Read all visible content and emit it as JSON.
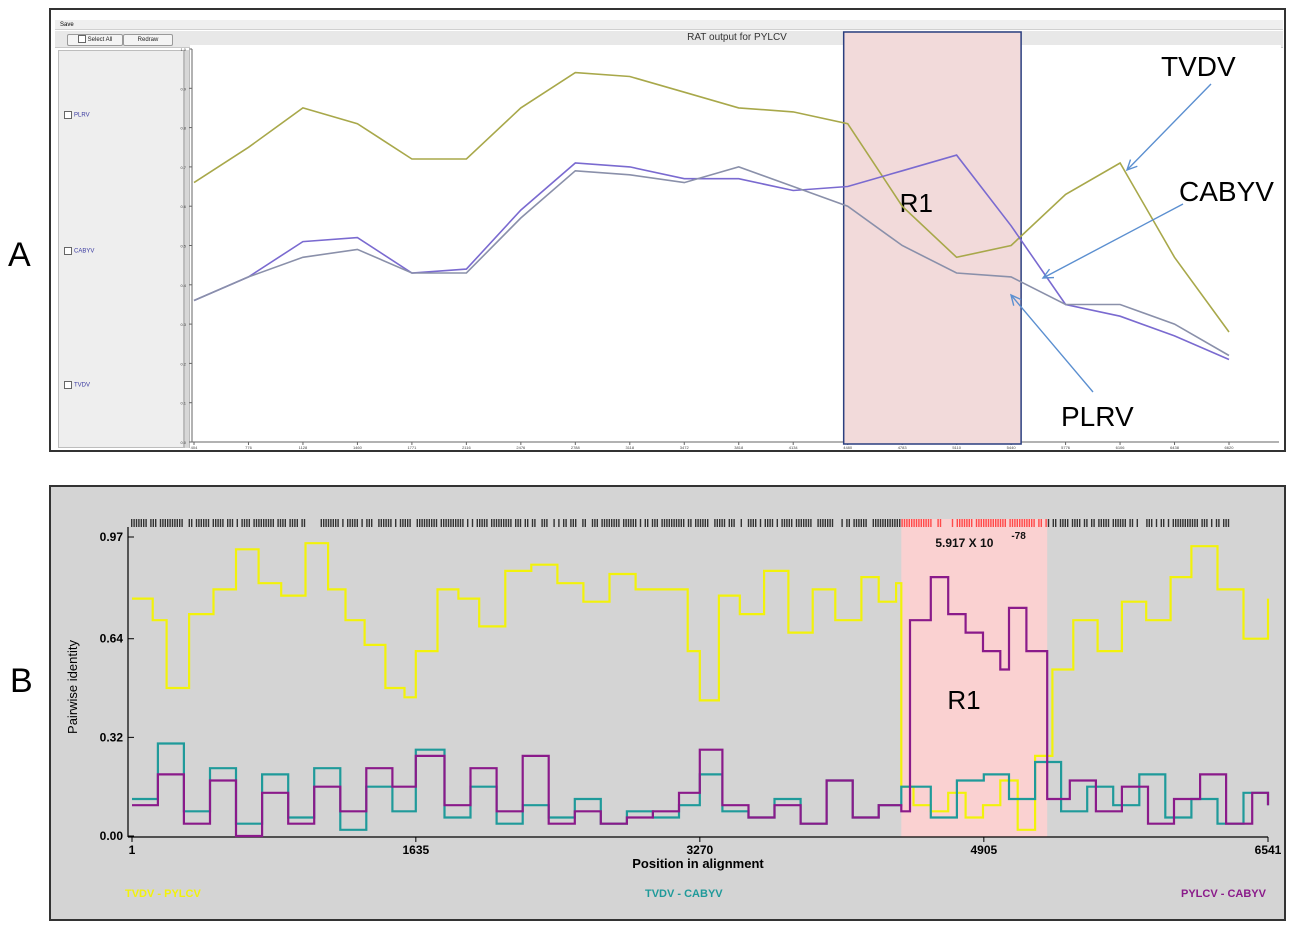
{
  "panel_labels": {
    "a": "A",
    "b": "B"
  },
  "panel_a_ui": {
    "menu_save": "Save",
    "select_all_label": "Select All",
    "redraw_label": "Redraw",
    "sidebar_items": [
      "PLRV",
      "CABYV",
      "TVDV"
    ]
  },
  "chart_data": [
    {
      "type": "line",
      "title": "RAT output for PYLCV",
      "x": [
        404,
        776,
        1128,
        1460,
        1771,
        2116,
        2476,
        2788,
        3118,
        3472,
        3818,
        4134,
        4480,
        4783,
        5110,
        5440,
        5776,
        6106,
        6438,
        6620
      ],
      "ylim": [
        0,
        1.0
      ],
      "yticks": [
        "0.0",
        "0.1",
        "0.2",
        "0.3",
        "0.4",
        "0.5",
        "0.6",
        "0.7",
        "0.8",
        "0.9",
        "1.0"
      ],
      "xticks": [
        "404",
        "776",
        "1128",
        "1460",
        "1771",
        "2116",
        "2476",
        "2788",
        "3118",
        "3472",
        "3818",
        "4134",
        "4480",
        "4783",
        "5110",
        "5440",
        "5776",
        "6106",
        "6438",
        "6620"
      ],
      "series": [
        {
          "name": "TVDV",
          "color": "#a8a84a",
          "values": [
            0.66,
            0.75,
            0.85,
            0.81,
            0.72,
            0.72,
            0.85,
            0.94,
            0.93,
            0.89,
            0.85,
            0.84,
            0.81,
            0.6,
            0.47,
            0.5,
            0.63,
            0.71,
            0.47,
            0.28
          ]
        },
        {
          "name": "CABYV",
          "color": "#7a6ad0",
          "values": [
            0.36,
            0.42,
            0.51,
            0.52,
            0.43,
            0.44,
            0.59,
            0.71,
            0.7,
            0.67,
            0.67,
            0.64,
            0.65,
            0.69,
            0.73,
            0.55,
            0.35,
            0.32,
            0.27,
            0.21
          ]
        },
        {
          "name": "PLRV",
          "color": "#8a90aa",
          "values": [
            0.36,
            0.42,
            0.47,
            0.49,
            0.43,
            0.43,
            0.57,
            0.69,
            0.68,
            0.66,
            0.7,
            0.65,
            0.6,
            0.5,
            0.43,
            0.42,
            0.35,
            0.35,
            0.3,
            0.22
          ]
        }
      ],
      "region": {
        "label": "R1",
        "x_start": 4480,
        "x_end": 5440,
        "color": "#f2dada",
        "border": "#2b3f80"
      },
      "annotations": [
        "TVDV",
        "CABYV",
        "PLRV"
      ]
    },
    {
      "type": "line",
      "xlabel": "Position in alignment",
      "ylabel": "Pairwise identity",
      "xlim": [
        1,
        6541
      ],
      "ylim": [
        0,
        0.97
      ],
      "xticks": [
        "1",
        "1635",
        "3270",
        "4905",
        "6541"
      ],
      "yticks": [
        "0.00",
        "0.32",
        "0.64",
        "0.97"
      ],
      "region": {
        "label": "R1",
        "x_start": 4430,
        "x_end": 5270,
        "pvalue_base": "5.917 X 10",
        "pvalue_exp": "-78",
        "color": "#fad1d1"
      },
      "series": [
        {
          "name": "TVDV - PYLCV",
          "color": "#f2f20a",
          "x": [
            1,
            120,
            200,
            330,
            470,
            600,
            730,
            860,
            1000,
            1130,
            1230,
            1340,
            1460,
            1570,
            1635,
            1760,
            1880,
            2000,
            2150,
            2300,
            2450,
            2600,
            2750,
            2900,
            3050,
            3200,
            3270,
            3380,
            3500,
            3640,
            3780,
            3920,
            4050,
            4200,
            4300,
            4400,
            4430,
            4500,
            4600,
            4700,
            4800,
            4900,
            5000,
            5100,
            5200,
            5300,
            5420,
            5560,
            5700,
            5840,
            5980,
            6100,
            6250,
            6400,
            6541
          ],
          "values": [
            0.77,
            0.7,
            0.48,
            0.72,
            0.8,
            0.93,
            0.82,
            0.78,
            0.95,
            0.8,
            0.7,
            0.62,
            0.48,
            0.45,
            0.6,
            0.8,
            0.77,
            0.68,
            0.86,
            0.88,
            0.82,
            0.76,
            0.85,
            0.8,
            0.8,
            0.6,
            0.44,
            0.78,
            0.72,
            0.86,
            0.66,
            0.8,
            0.7,
            0.84,
            0.76,
            0.82,
            0.16,
            0.1,
            0.08,
            0.14,
            0.06,
            0.1,
            0.18,
            0.02,
            0.26,
            0.54,
            0.7,
            0.6,
            0.76,
            0.7,
            0.84,
            0.94,
            0.8,
            0.64,
            0.77
          ]
        },
        {
          "name": "TVDV - CABYV",
          "color": "#1f9a9a",
          "x": [
            1,
            150,
            300,
            450,
            600,
            750,
            900,
            1050,
            1200,
            1350,
            1500,
            1635,
            1800,
            1950,
            2100,
            2250,
            2400,
            2550,
            2700,
            2850,
            3000,
            3150,
            3270,
            3400,
            3550,
            3700,
            3850,
            4000,
            4150,
            4300,
            4430,
            4600,
            4750,
            4905,
            5050,
            5200,
            5350,
            5500,
            5650,
            5800,
            5950,
            6100,
            6250,
            6400,
            6541
          ],
          "values": [
            0.12,
            0.3,
            0.08,
            0.22,
            0.04,
            0.2,
            0.06,
            0.22,
            0.02,
            0.16,
            0.08,
            0.28,
            0.06,
            0.16,
            0.04,
            0.1,
            0.06,
            0.12,
            0.04,
            0.08,
            0.06,
            0.1,
            0.2,
            0.08,
            0.06,
            0.12,
            0.04,
            0.18,
            0.06,
            0.1,
            0.16,
            0.06,
            0.18,
            0.2,
            0.12,
            0.24,
            0.08,
            0.16,
            0.1,
            0.2,
            0.06,
            0.12,
            0.04,
            0.14,
            0.1
          ]
        },
        {
          "name": "PYLCV - CABYV",
          "color": "#8a1a8a",
          "x": [
            1,
            150,
            300,
            450,
            600,
            750,
            900,
            1050,
            1200,
            1350,
            1500,
            1635,
            1800,
            1950,
            2100,
            2250,
            2400,
            2550,
            2700,
            2850,
            3000,
            3150,
            3270,
            3400,
            3550,
            3700,
            3850,
            4000,
            4150,
            4300,
            4430,
            4480,
            4600,
            4700,
            4800,
            4900,
            5000,
            5050,
            5150,
            5270,
            5400,
            5550,
            5700,
            5850,
            6000,
            6150,
            6300,
            6450,
            6541
          ],
          "values": [
            0.1,
            0.2,
            0.04,
            0.18,
            0.0,
            0.14,
            0.04,
            0.16,
            0.08,
            0.22,
            0.16,
            0.26,
            0.1,
            0.22,
            0.08,
            0.26,
            0.04,
            0.08,
            0.04,
            0.06,
            0.08,
            0.14,
            0.28,
            0.1,
            0.06,
            0.1,
            0.04,
            0.18,
            0.06,
            0.1,
            0.08,
            0.7,
            0.84,
            0.72,
            0.66,
            0.6,
            0.54,
            0.74,
            0.6,
            0.12,
            0.18,
            0.08,
            0.16,
            0.04,
            0.12,
            0.2,
            0.04,
            0.14,
            0.1
          ]
        }
      ]
    }
  ]
}
